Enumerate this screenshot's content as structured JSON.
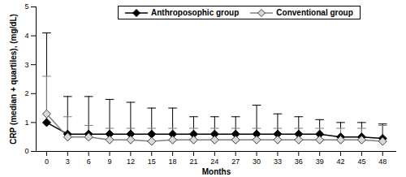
{
  "chart_data": {
    "type": "line",
    "x_label": "Months",
    "y_label": "CRP (median + quartiles), (mg/dL)",
    "x": [
      0,
      3,
      6,
      9,
      12,
      15,
      18,
      21,
      24,
      27,
      30,
      33,
      36,
      39,
      42,
      45,
      48
    ],
    "xlim": [
      -1.5,
      50
    ],
    "xticks": [
      0,
      3,
      6,
      9,
      12,
      15,
      18,
      21,
      24,
      27,
      30,
      33,
      36,
      39,
      42,
      45,
      48
    ],
    "ylim": [
      0,
      5
    ],
    "yticks": [
      0,
      1,
      2,
      3,
      4,
      5
    ],
    "legend": "top",
    "series": [
      {
        "name": "Anthroposophic group",
        "color": "#000000",
        "marker": "diamond",
        "values": [
          1.0,
          0.6,
          0.6,
          0.6,
          0.6,
          0.6,
          0.6,
          0.6,
          0.6,
          0.6,
          0.6,
          0.6,
          0.6,
          0.6,
          0.5,
          0.5,
          0.45
        ],
        "upper_quartile": [
          4.1,
          1.9,
          1.9,
          1.8,
          1.7,
          1.5,
          1.5,
          1.2,
          1.2,
          1.2,
          1.6,
          1.3,
          1.2,
          1.1,
          1.0,
          1.0,
          0.95
        ]
      },
      {
        "name": "Conventional group",
        "color": "#d9d9d9",
        "marker": "diamond",
        "values": [
          1.3,
          0.5,
          0.5,
          0.4,
          0.4,
          0.35,
          0.4,
          0.4,
          0.4,
          0.4,
          0.4,
          0.4,
          0.4,
          0.4,
          0.4,
          0.4,
          0.35
        ],
        "upper_quartile": [
          2.6,
          1.2,
          0.9,
          0.8,
          0.8,
          0.8,
          0.8,
          0.8,
          0.8,
          0.8,
          0.8,
          0.8,
          0.8,
          0.8,
          0.8,
          0.8,
          0.9
        ]
      }
    ]
  }
}
